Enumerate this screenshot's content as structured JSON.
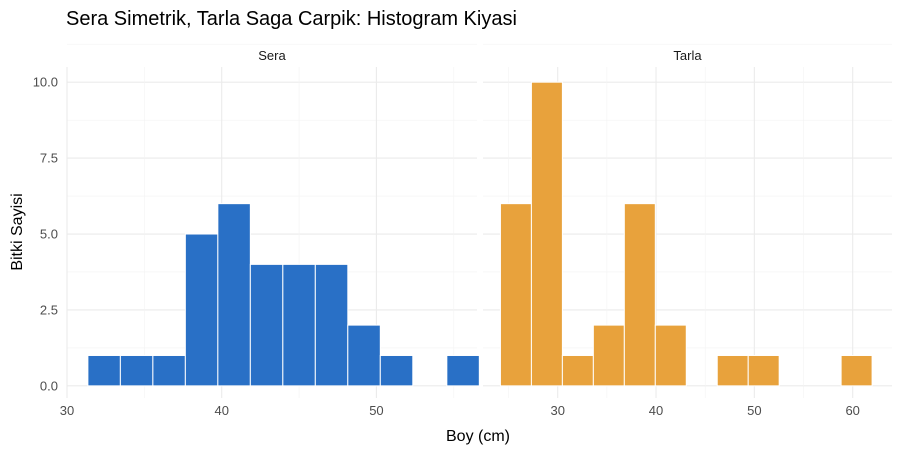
{
  "chart_data": {
    "type": "bar",
    "subtype": "histogram-facets",
    "title": "Sera Simetrik, Tarla Saga Carpik: Histogram Kiyasi",
    "xlabel": "Boy (cm)",
    "ylabel": "Bitki Sayisi",
    "ylim": [
      -0.4,
      10.5
    ],
    "yticks": [
      "0.0",
      "2.5",
      "5.0",
      "7.5",
      "10.0"
    ],
    "grid": true,
    "panels": [
      {
        "name": "Sera",
        "color": "#2970c6",
        "xlim": [
          30,
          56.5
        ],
        "xticks": [
          "30",
          "40",
          "50"
        ],
        "bin_width": 2.1,
        "bins": [
          {
            "x": 32.4,
            "count": 1
          },
          {
            "x": 34.5,
            "count": 1
          },
          {
            "x": 36.6,
            "count": 1
          },
          {
            "x": 38.7,
            "count": 5
          },
          {
            "x": 40.8,
            "count": 6
          },
          {
            "x": 42.9,
            "count": 4
          },
          {
            "x": 45.0,
            "count": 4
          },
          {
            "x": 47.1,
            "count": 4
          },
          {
            "x": 49.2,
            "count": 2
          },
          {
            "x": 51.3,
            "count": 1
          },
          {
            "x": 55.6,
            "count": 1
          }
        ]
      },
      {
        "name": "Tarla",
        "color": "#e8a23c",
        "xlim": [
          22.4,
          64
        ],
        "xticks": [
          "30",
          "40",
          "50",
          "60"
        ],
        "bin_width": 3.15,
        "bins": [
          {
            "x": 25.75,
            "count": 6
          },
          {
            "x": 28.9,
            "count": 10
          },
          {
            "x": 32.05,
            "count": 1
          },
          {
            "x": 35.2,
            "count": 2
          },
          {
            "x": 38.35,
            "count": 6
          },
          {
            "x": 41.5,
            "count": 2
          },
          {
            "x": 47.8,
            "count": 1
          },
          {
            "x": 50.95,
            "count": 1
          },
          {
            "x": 60.4,
            "count": 1
          }
        ]
      }
    ]
  }
}
